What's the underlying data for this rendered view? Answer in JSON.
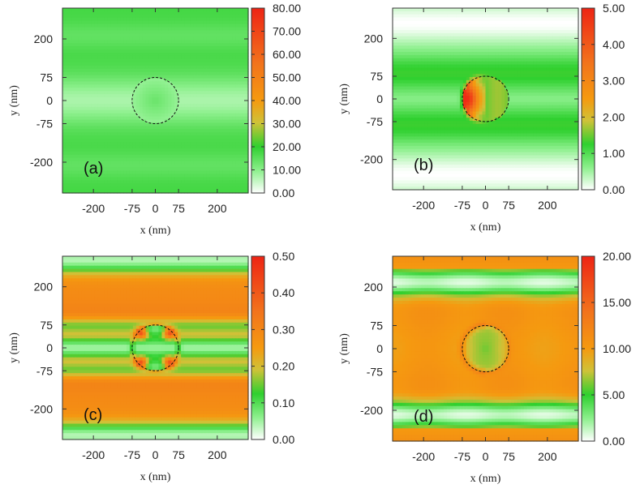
{
  "figure": {
    "panel_count": 4
  },
  "chart_data": [
    {
      "type": "heatmap",
      "panel_label": "(a)",
      "xlabel": "x (nm)",
      "ylabel": "y (nm)",
      "xlim": [
        -300,
        300
      ],
      "ylim": [
        -300,
        300
      ],
      "xticks": [
        -200,
        -75,
        0,
        75,
        200
      ],
      "yticks": [
        200,
        75,
        0,
        -75,
        -200
      ],
      "colorbar_range": [
        0,
        80
      ],
      "colorbar_ticks": [
        "80.00",
        "70.00",
        "60.00",
        "50.00",
        "40.00",
        "30.00",
        "20.00",
        "10.00",
        "0.00"
      ],
      "circle_radius_nm": 75,
      "field": "stripes_low"
    },
    {
      "type": "heatmap",
      "panel_label": "(b)",
      "xlabel": "x (nm)",
      "ylabel": "y (nm)",
      "xlim": [
        -300,
        300
      ],
      "ylim": [
        -300,
        300
      ],
      "xticks": [
        -200,
        -75,
        0,
        75,
        200
      ],
      "yticks": [
        200,
        75,
        0,
        -75,
        -200
      ],
      "colorbar_range": [
        0,
        5
      ],
      "colorbar_ticks": [
        "5.00",
        "4.00",
        "3.00",
        "2.00",
        "1.00",
        "0.00"
      ],
      "circle_radius_nm": 75,
      "field": "left_hotspot"
    },
    {
      "type": "heatmap",
      "panel_label": "(c)",
      "xlabel": "x (nm)",
      "ylabel": "y (nm)",
      "xlim": [
        -300,
        300
      ],
      "ylim": [
        -300,
        300
      ],
      "xticks": [
        -200,
        -75,
        0,
        75,
        200
      ],
      "yticks": [
        200,
        75,
        0,
        -75,
        -200
      ],
      "colorbar_range": [
        0,
        0.5
      ],
      "colorbar_ticks": [
        "0.50",
        "0.40",
        "0.30",
        "0.20",
        "0.10",
        "0.00"
      ],
      "circle_radius_nm": 75,
      "field": "stripes_high_four_spots"
    },
    {
      "type": "heatmap",
      "panel_label": "(d)",
      "xlabel": "x (nm)",
      "ylabel": "y (nm)",
      "xlim": [
        -300,
        300
      ],
      "ylim": [
        -300,
        300
      ],
      "xticks": [
        -200,
        -75,
        0,
        75,
        200
      ],
      "yticks": [
        200,
        75,
        0,
        -75,
        -200
      ],
      "colorbar_range": [
        0,
        20
      ],
      "colorbar_ticks": [
        "20.00",
        "15.00",
        "10.00",
        "5.00",
        "0.00"
      ],
      "circle_radius_nm": 75,
      "field": "stripes_orange_green_core"
    }
  ]
}
